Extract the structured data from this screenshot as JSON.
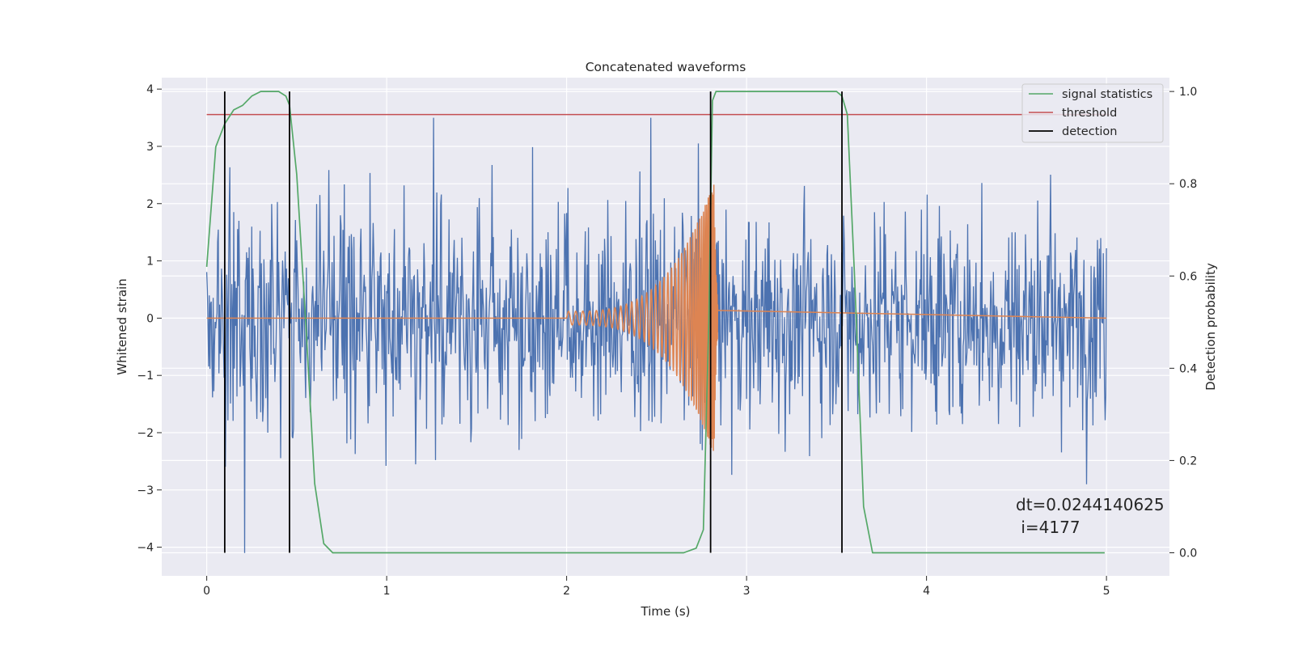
{
  "chart_data": {
    "type": "line",
    "title": "Concatenated waveforms",
    "xlabel": "Time (s)",
    "ylabel": "Whitened strain",
    "y2label": "Detection probability",
    "xlim": [
      -0.25,
      5.35
    ],
    "ylim": [
      -4.5,
      4.2
    ],
    "y2lim": [
      -0.05,
      1.03
    ],
    "x_ticks": [
      0,
      1,
      2,
      3,
      4,
      5
    ],
    "x_tick_labels": [
      "0",
      "1",
      "2",
      "3",
      "4",
      "5"
    ],
    "y_ticks": [
      -4,
      -3,
      -2,
      -1,
      0,
      1,
      2,
      3,
      4
    ],
    "y_tick_labels": [
      "−4",
      "−3",
      "−2",
      "−1",
      "0",
      "1",
      "2",
      "3",
      "4"
    ],
    "y2_ticks": [
      0.0,
      0.2,
      0.4,
      0.6,
      0.8,
      1.0
    ],
    "y2_tick_labels": [
      "0.0",
      "0.2",
      "0.4",
      "0.6",
      "0.8",
      "1.0"
    ],
    "grid": true,
    "legend_position": "top-right",
    "colors": {
      "strain": "#4c72b0",
      "waveform": "#dd8452",
      "signal_statistics": "#55a868",
      "threshold": "#c44e52",
      "detection": "#000000",
      "axes_background": "#eaeaf2",
      "grid": "#ffffff"
    },
    "series": [
      {
        "name": "",
        "axis": "left",
        "kind": "noise",
        "x_range": [
          0,
          5
        ],
        "typical_envelope": 1.3,
        "max_abs": 3.5
      },
      {
        "name": "",
        "axis": "left",
        "kind": "chirp",
        "x_range": [
          2.0,
          2.84
        ],
        "amplitude_start": 0.12,
        "amplitude_peak": 2.4,
        "peak_time": 2.82
      },
      {
        "name": "signal statistics",
        "axis": "right",
        "x": [
          0.0,
          0.05,
          0.1,
          0.15,
          0.2,
          0.25,
          0.3,
          0.35,
          0.4,
          0.44,
          0.46,
          0.5,
          0.55,
          0.6,
          0.65,
          0.7,
          1.0,
          2.0,
          2.5,
          2.65,
          2.72,
          2.76,
          2.79,
          2.81,
          2.83,
          2.86,
          3.0,
          3.4,
          3.5,
          3.53,
          3.56,
          3.6,
          3.65,
          3.7,
          4.0,
          4.99
        ],
        "values": [
          0.62,
          0.88,
          0.93,
          0.96,
          0.97,
          0.99,
          1.0,
          1.0,
          1.0,
          0.99,
          0.97,
          0.82,
          0.5,
          0.15,
          0.02,
          0.0,
          0.0,
          0.0,
          0.0,
          0.0,
          0.01,
          0.05,
          0.5,
          0.98,
          1.0,
          1.0,
          1.0,
          1.0,
          1.0,
          0.99,
          0.95,
          0.6,
          0.1,
          0.0,
          0.0,
          0.0
        ]
      },
      {
        "name": "threshold",
        "axis": "right",
        "x": [
          0,
          5.02
        ],
        "values": [
          0.95,
          0.95
        ]
      }
    ],
    "detections": {
      "name": "detection",
      "x": [
        0.1,
        0.46,
        2.8,
        3.53
      ]
    },
    "annotation": {
      "line1": "dt=0.0244140625",
      "line2": " i=4177"
    }
  }
}
